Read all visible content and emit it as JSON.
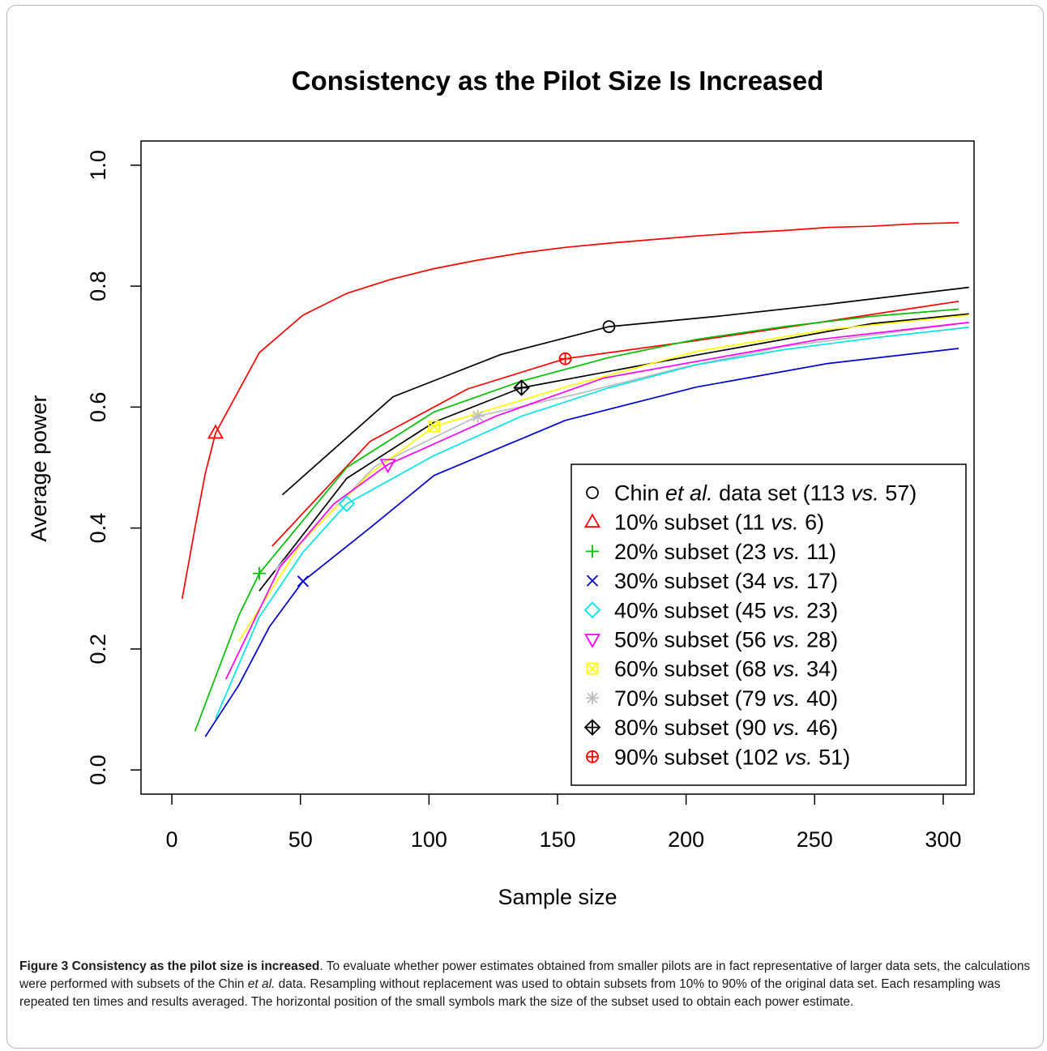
{
  "chart_data": {
    "type": "line",
    "title": "Consistency as the Pilot Size Is Increased",
    "xlabel": "Sample size",
    "ylabel": "Average power",
    "xlim": [
      -12,
      312
    ],
    "ylim": [
      -0.04,
      1.04
    ],
    "xticks": [
      0,
      50,
      100,
      150,
      200,
      250,
      300
    ],
    "yticks": [
      0.0,
      0.2,
      0.4,
      0.6,
      0.8,
      1.0
    ],
    "xtick_labels": [
      "0",
      "50",
      "100",
      "150",
      "200",
      "250",
      "300"
    ],
    "ytick_labels": [
      "0.0",
      "0.2",
      "0.4",
      "0.6",
      "0.8",
      "1.0"
    ],
    "grid": false,
    "legend_position": "bottom-right",
    "series": [
      {
        "name": "Chin et al. data set (113 vs. 57)",
        "color": "#000000",
        "marker": "circle",
        "marker_x": 170,
        "x": [
          43,
          86,
          128,
          170,
          212,
          255,
          310
        ],
        "y": [
          0.455,
          0.617,
          0.687,
          0.733,
          0.75,
          0.77,
          0.798
        ]
      },
      {
        "name": "10% subset (11 vs. 6)",
        "color": "#ff0000",
        "marker": "triangle-up",
        "marker_x": 17,
        "x": [
          4,
          9,
          13,
          17,
          34,
          51,
          68,
          85,
          102,
          119,
          136,
          153,
          170,
          187,
          204,
          221,
          238,
          255,
          272,
          289,
          306
        ],
        "y": [
          0.283,
          0.4,
          0.49,
          0.557,
          0.69,
          0.752,
          0.788,
          0.811,
          0.829,
          0.843,
          0.855,
          0.864,
          0.871,
          0.877,
          0.883,
          0.888,
          0.892,
          0.897,
          0.899,
          0.903,
          0.905
        ]
      },
      {
        "name": "20% subset (23 vs. 11)",
        "color": "#00c000",
        "marker": "plus",
        "marker_x": 34,
        "x": [
          9,
          26,
          34,
          68,
          102,
          136,
          170,
          204,
          238,
          272,
          306
        ],
        "y": [
          0.064,
          0.255,
          0.325,
          0.5,
          0.592,
          0.643,
          0.682,
          0.712,
          0.733,
          0.75,
          0.762
        ]
      },
      {
        "name": "30% subset (34 vs. 17)",
        "color": "#0000cc",
        "marker": "x",
        "marker_x": 51,
        "x": [
          13,
          26,
          38,
          51,
          77,
          102,
          153,
          204,
          255,
          306
        ],
        "y": [
          0.055,
          0.14,
          0.237,
          0.312,
          0.4,
          0.487,
          0.578,
          0.633,
          0.672,
          0.697
        ]
      },
      {
        "name": "40% subset (45 vs. 23)",
        "color": "#00e5e5",
        "marker": "diamond",
        "marker_x": 68,
        "x": [
          17,
          34,
          51,
          68,
          102,
          136,
          170,
          204,
          238,
          272,
          310
        ],
        "y": [
          0.085,
          0.253,
          0.36,
          0.44,
          0.52,
          0.585,
          0.632,
          0.67,
          0.695,
          0.714,
          0.732
        ]
      },
      {
        "name": "50% subset (56 vs. 28)",
        "color": "#ff00ff",
        "marker": "triangle-down",
        "marker_x": 84,
        "x": [
          21,
          42,
          63,
          84,
          126,
          168,
          210,
          252,
          310
        ],
        "y": [
          0.15,
          0.335,
          0.44,
          0.505,
          0.585,
          0.648,
          0.68,
          0.712,
          0.74
        ]
      },
      {
        "name": "60% subset (68 vs. 34)",
        "color": "#ffff00",
        "marker": "square-x",
        "marker_x": 102,
        "x": [
          26,
          51,
          77,
          102,
          153,
          204,
          255,
          310
        ],
        "y": [
          0.213,
          0.38,
          0.49,
          0.568,
          0.633,
          0.692,
          0.728,
          0.752
        ]
      },
      {
        "name": "70% subset (79 vs. 40)",
        "color": "#bebebe",
        "marker": "asterisk",
        "marker_x": 119,
        "x": [
          40,
          79,
          119,
          158,
          198,
          238,
          310
        ],
        "y": [
          0.33,
          0.502,
          0.585,
          0.622,
          0.665,
          0.7,
          0.74
        ]
      },
      {
        "name": "80% subset (90 vs. 46)",
        "color": "#000000",
        "marker": "diamond-plus",
        "marker_x": 136,
        "x": [
          34,
          68,
          102,
          136,
          204,
          272,
          310
        ],
        "y": [
          0.296,
          0.482,
          0.575,
          0.632,
          0.686,
          0.738,
          0.754
        ]
      },
      {
        "name": "90% subset (102 vs. 51)",
        "color": "#ff0000",
        "marker": "circle-plus",
        "marker_x": 153,
        "x": [
          39,
          77,
          115,
          153,
          204,
          255,
          306
        ],
        "y": [
          0.37,
          0.543,
          0.63,
          0.68,
          0.71,
          0.742,
          0.775
        ]
      }
    ],
    "legend": [
      {
        "marker": "circle",
        "color": "#000000",
        "parts": [
          [
            "Chin ",
            false
          ],
          [
            "et al.",
            true
          ],
          [
            " data set (113 ",
            false
          ],
          [
            "vs.",
            true
          ],
          [
            " 57)",
            false
          ]
        ]
      },
      {
        "marker": "triangle-up",
        "color": "#ff0000",
        "parts": [
          [
            "10% subset (11 ",
            false
          ],
          [
            "vs.",
            true
          ],
          [
            " 6)",
            false
          ]
        ]
      },
      {
        "marker": "plus",
        "color": "#00c000",
        "parts": [
          [
            "20% subset (23 ",
            false
          ],
          [
            "vs.",
            true
          ],
          [
            " 11)",
            false
          ]
        ]
      },
      {
        "marker": "x",
        "color": "#0000cc",
        "parts": [
          [
            "30% subset (34 ",
            false
          ],
          [
            "vs.",
            true
          ],
          [
            " 17)",
            false
          ]
        ]
      },
      {
        "marker": "diamond",
        "color": "#00e5e5",
        "parts": [
          [
            "40% subset (45 ",
            false
          ],
          [
            "vs.",
            true
          ],
          [
            " 23)",
            false
          ]
        ]
      },
      {
        "marker": "triangle-down",
        "color": "#ff00ff",
        "parts": [
          [
            "50% subset (56 ",
            false
          ],
          [
            "vs.",
            true
          ],
          [
            " 28)",
            false
          ]
        ]
      },
      {
        "marker": "square-x",
        "color": "#ffff00",
        "parts": [
          [
            "60% subset (68 ",
            false
          ],
          [
            "vs.",
            true
          ],
          [
            " 34)",
            false
          ]
        ]
      },
      {
        "marker": "asterisk",
        "color": "#bebebe",
        "parts": [
          [
            "70% subset (79 ",
            false
          ],
          [
            "vs.",
            true
          ],
          [
            " 40)",
            false
          ]
        ]
      },
      {
        "marker": "diamond-plus",
        "color": "#000000",
        "parts": [
          [
            "80% subset (90 ",
            false
          ],
          [
            "vs.",
            true
          ],
          [
            " 46)",
            false
          ]
        ]
      },
      {
        "marker": "circle-plus",
        "color": "#ff0000",
        "parts": [
          [
            "90% subset (102 ",
            false
          ],
          [
            "vs.",
            true
          ],
          [
            " 51)",
            false
          ]
        ]
      }
    ]
  },
  "caption": {
    "label": "Figure 3 Consistency as the pilot size is increased",
    "text_1": ". To evaluate whether power estimates obtained from smaller pilots are in fact representative of larger data sets, the calculations were performed with subsets of the Chin ",
    "italic_1": "et al.",
    "text_2": " data. Resampling without replacement was used to obtain subsets from 10% to 90% of the original data set. Each resampling was repeated ten times and results averaged. The horizontal position of the small symbols mark the size of the subset used to obtain each power estimate."
  }
}
